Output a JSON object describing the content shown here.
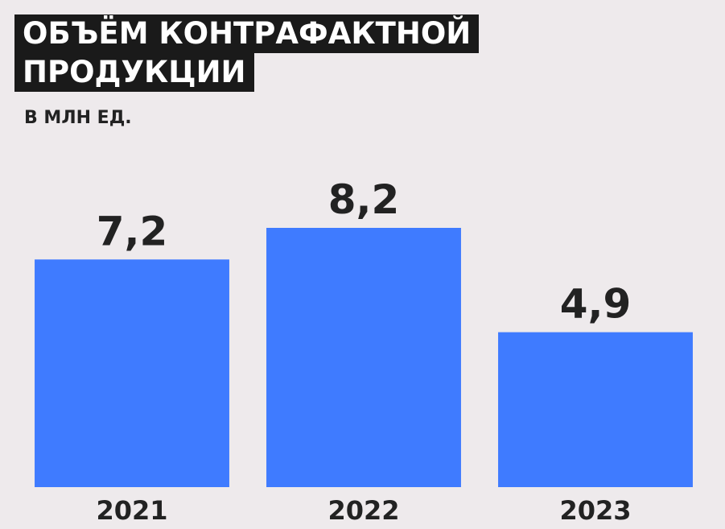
{
  "chart_data": {
    "type": "bar",
    "title": [
      "ОБЪЁМ КОНТРАФАКТНОЙ",
      "ПРОДУКЦИИ"
    ],
    "subtitle": "В МЛН ЕД.",
    "categories": [
      "2021",
      "2022",
      "2023"
    ],
    "values": [
      7.2,
      8.2,
      4.9
    ],
    "value_labels": [
      "7,2",
      "8,2",
      "4,9"
    ],
    "color": "#3f7bff"
  }
}
